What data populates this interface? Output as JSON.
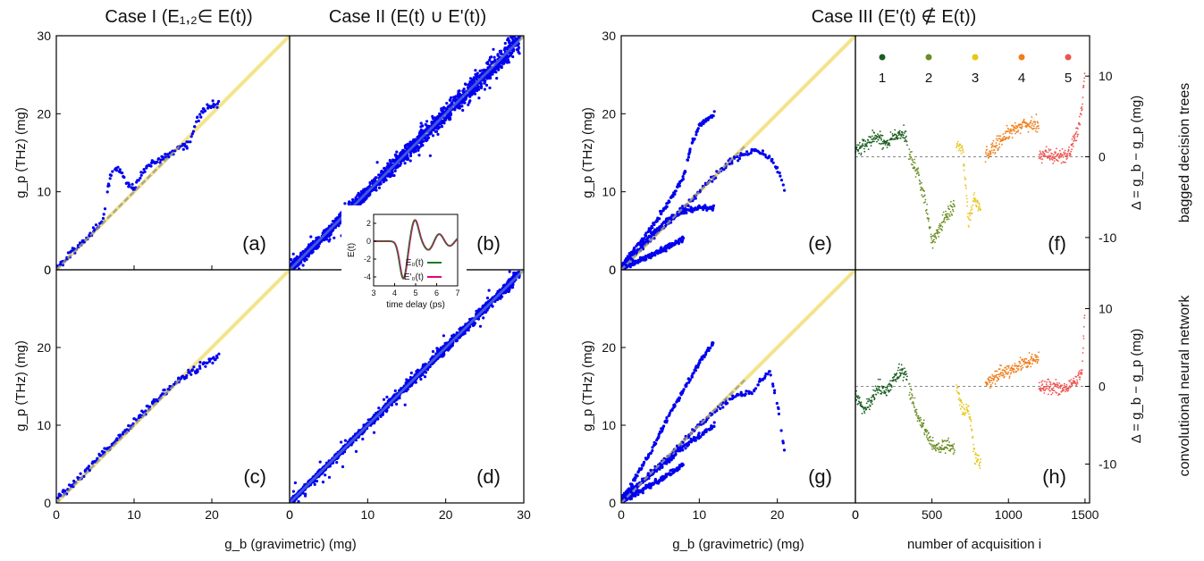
{
  "titles": {
    "case1": "Case I  (E₁,₂∈ E(t))",
    "case2": "Case II  (E(t) ∪ E'(t))",
    "case3": "Case III  (E'(t) ∉ E(t))"
  },
  "axes": {
    "x_scatter": "g_b (gravimetric) (mg)",
    "y_scatter": "g_p (THz) (mg)",
    "x_residual": "number of acquisition i",
    "y_residual": "Δ = g_b − g_p (mg)"
  },
  "row_labels": {
    "top": "bagged decision trees",
    "bottom": "convolutional neural network"
  },
  "colors": {
    "points": "#0000ee",
    "diagonal": "#f4e48a",
    "fit": "#9a9a9a",
    "group_colors": [
      "#1b5e20",
      "#6b8e23",
      "#e6c619",
      "#ef7f1a",
      "#ef5350"
    ],
    "inset_e0": "#1e7a1e",
    "inset_e0p": "#e6007e"
  },
  "inset": {
    "xlabel": "time delay (ps)",
    "ylabel": "E(t)",
    "legend": [
      "E₀(t)",
      "E'₀(t)"
    ],
    "xticks": [
      "3",
      "4",
      "5",
      "6",
      "7"
    ],
    "yticks": [
      "-4",
      "-2",
      "0",
      "2"
    ]
  },
  "chart_data": [
    {
      "type": "scatter",
      "id": "a",
      "panel_label": "(a)",
      "xlim": [
        0,
        30
      ],
      "ylim": [
        0,
        30
      ],
      "xticks": [
        0,
        10,
        20
      ],
      "yticks": [
        0,
        10,
        20,
        30
      ],
      "series": [
        {
          "x": [
            0,
            1,
            2,
            3,
            4,
            5,
            6,
            7,
            8,
            9,
            10,
            11,
            12,
            13,
            14,
            15,
            16,
            17,
            18,
            19,
            20,
            21
          ],
          "y": [
            0.3,
            1.1,
            2.3,
            3.1,
            4.2,
            5.2,
            6.5,
            12.5,
            13.2,
            11.0,
            10.5,
            12.5,
            13.5,
            14.0,
            14.5,
            15.0,
            15.8,
            16.0,
            19.0,
            20.5,
            21.0,
            21.5
          ]
        }
      ]
    },
    {
      "type": "scatter",
      "id": "b",
      "panel_label": "(b)",
      "xlim": [
        0,
        30
      ],
      "ylim": [
        0,
        30
      ],
      "series": [
        {
          "x": [
            0,
            30
          ],
          "y": [
            0,
            30
          ]
        }
      ]
    },
    {
      "type": "scatter",
      "id": "c",
      "panel_label": "(c)",
      "xlim": [
        0,
        30
      ],
      "ylim": [
        0,
        30
      ],
      "xticks": [
        0,
        10,
        20
      ],
      "yticks": [
        0,
        10,
        20
      ],
      "series": [
        {
          "x": [
            0,
            2,
            4,
            6,
            8,
            10,
            12,
            14,
            16,
            18,
            20,
            21
          ],
          "y": [
            0.6,
            2.2,
            4.3,
            6.5,
            8.3,
            10.5,
            12.5,
            14.2,
            16.0,
            17.2,
            18.5,
            19.0
          ]
        }
      ]
    },
    {
      "type": "scatter",
      "id": "d",
      "panel_label": "(d)",
      "xlim": [
        0,
        30
      ],
      "ylim": [
        0,
        30
      ],
      "xticks": [
        0,
        10,
        20,
        30
      ],
      "series": [
        {
          "x": [
            0,
            30
          ],
          "y": [
            0,
            30
          ]
        }
      ]
    },
    {
      "type": "scatter",
      "id": "e",
      "panel_label": "(e)",
      "xlim": [
        0,
        30
      ],
      "ylim": [
        0,
        30
      ],
      "yticks": [
        0,
        10,
        20,
        30
      ],
      "series": [
        {
          "x": [
            0,
            2,
            4,
            6,
            8,
            9,
            10,
            12
          ],
          "y": [
            0.5,
            3,
            5.5,
            8.5,
            12,
            16,
            18.5,
            20
          ]
        },
        {
          "x": [
            0,
            2,
            4,
            6,
            8,
            10,
            12
          ],
          "y": [
            0.5,
            2.5,
            4.5,
            6.5,
            7.5,
            8,
            8
          ]
        },
        {
          "x": [
            0,
            2,
            4,
            6,
            8
          ],
          "y": [
            0.2,
            1.0,
            2.0,
            3.0,
            4.0
          ]
        },
        {
          "x": [
            0,
            5,
            10,
            14,
            17,
            19,
            20,
            21
          ],
          "y": [
            0.3,
            5,
            10,
            14,
            15.3,
            14.5,
            13,
            10
          ]
        }
      ]
    },
    {
      "type": "scatter",
      "id": "g",
      "panel_label": "(g)",
      "xlim": [
        0,
        30
      ],
      "ylim": [
        0,
        30
      ],
      "xticks": [
        0,
        10,
        20
      ],
      "yticks": [
        0,
        10,
        20
      ],
      "series": [
        {
          "x": [
            0,
            2,
            4,
            6,
            8,
            10,
            12
          ],
          "y": [
            0.5,
            3.5,
            7,
            11,
            14.5,
            18,
            21
          ]
        },
        {
          "x": [
            0,
            3,
            6,
            9,
            12
          ],
          "y": [
            0.5,
            3,
            5.5,
            8,
            10
          ]
        },
        {
          "x": [
            0,
            2,
            4,
            6,
            8
          ],
          "y": [
            0.2,
            1.2,
            2.4,
            3.6,
            5
          ]
        },
        {
          "x": [
            0,
            5,
            10,
            14,
            17,
            19,
            20,
            21
          ],
          "y": [
            0.3,
            5,
            10,
            13.5,
            14.5,
            17,
            13,
            6
          ]
        }
      ]
    },
    {
      "type": "scatter",
      "id": "f",
      "panel_label": "(f)",
      "xlim": [
        0,
        1530
      ],
      "ylim": [
        -14,
        15
      ],
      "yticks": [
        -10,
        0,
        10
      ],
      "legend": [
        "1",
        "2",
        "3",
        "4",
        "5"
      ],
      "reference_line": 0,
      "series": [
        {
          "name": "1",
          "x": [
            0,
            50,
            100,
            150,
            200,
            250,
            300,
            340
          ],
          "y": [
            0.5,
            1.5,
            2.0,
            2.5,
            1.5,
            2.5,
            3.0,
            2.5
          ]
        },
        {
          "name": "2",
          "x": [
            350,
            400,
            450,
            500,
            550,
            600,
            650
          ],
          "y": [
            0,
            -1.5,
            -5,
            -10.5,
            -9,
            -7,
            -6
          ]
        },
        {
          "name": "3",
          "x": [
            660,
            700,
            740,
            780,
            820
          ],
          "y": [
            1.5,
            1.0,
            -8,
            -5,
            -7
          ]
        },
        {
          "name": "4",
          "x": [
            850,
            900,
            950,
            1000,
            1050,
            1100,
            1150,
            1200
          ],
          "y": [
            0,
            1,
            2,
            3,
            3.5,
            4,
            4,
            4
          ]
        },
        {
          "name": "5",
          "x": [
            1200,
            1250,
            1300,
            1350,
            1400,
            1450,
            1480,
            1500
          ],
          "y": [
            0,
            0.5,
            0,
            0,
            0.5,
            3,
            6,
            11
          ]
        }
      ]
    },
    {
      "type": "scatter",
      "id": "h",
      "panel_label": "(h)",
      "xlim": [
        0,
        1530
      ],
      "ylim": [
        -15,
        15
      ],
      "xticks": [
        0,
        500,
        1000,
        1500
      ],
      "yticks": [
        -10,
        0,
        10
      ],
      "reference_line": 0,
      "series": [
        {
          "name": "1",
          "x": [
            0,
            50,
            100,
            150,
            200,
            250,
            300,
            340
          ],
          "y": [
            -1,
            -3,
            -2,
            0,
            -1,
            1,
            2,
            1.5
          ]
        },
        {
          "name": "2",
          "x": [
            350,
            400,
            450,
            500,
            550,
            600,
            650
          ],
          "y": [
            0,
            -3.5,
            -5.5,
            -7.5,
            -8,
            -7.5,
            -8
          ]
        },
        {
          "name": "3",
          "x": [
            660,
            700,
            740,
            780,
            820
          ],
          "y": [
            0,
            -3,
            -3,
            -9,
            -10
          ]
        },
        {
          "name": "4",
          "x": [
            850,
            900,
            950,
            1000,
            1050,
            1100,
            1150,
            1200
          ],
          "y": [
            0.5,
            1,
            1.5,
            2,
            2.5,
            3,
            3.5,
            3.5
          ]
        },
        {
          "name": "5",
          "x": [
            1200,
            1250,
            1300,
            1350,
            1400,
            1450,
            1480,
            1500
          ],
          "y": [
            0,
            0,
            0,
            -0.5,
            0,
            1,
            2,
            10
          ]
        }
      ]
    }
  ]
}
